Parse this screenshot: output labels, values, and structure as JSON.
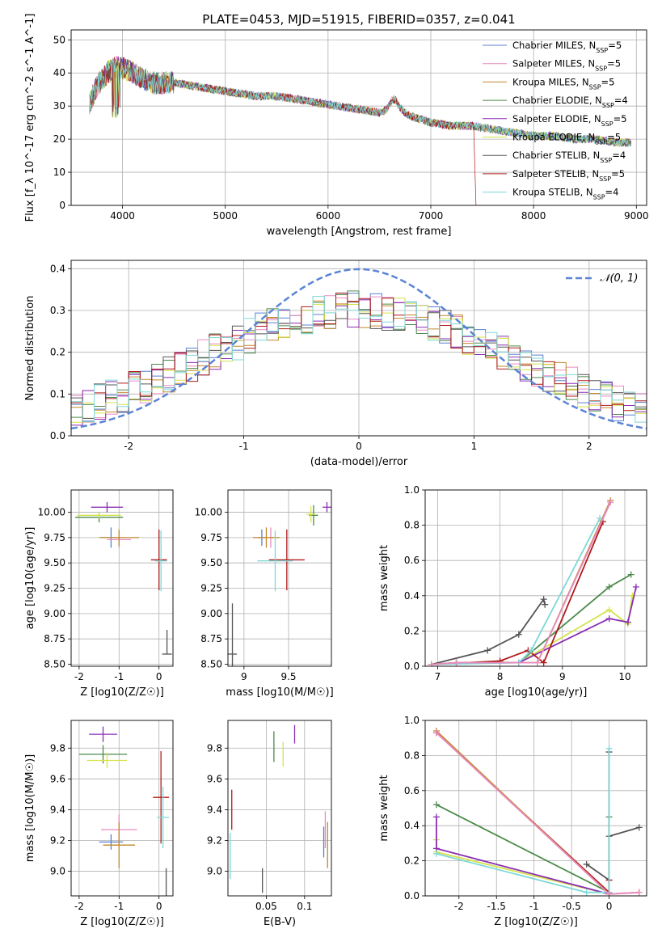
{
  "title": "PLATE=0453, MJD=51915, FIBERID=0357, z=0.041",
  "colors": [
    "#5b7fd1",
    "#e88ac2",
    "#c2882a",
    "#4c8a4c",
    "#8b2fb4",
    "#d4e34a",
    "#555555",
    "#b01a1a",
    "#7fd7d7"
  ],
  "chart_data": [
    {
      "type": "line",
      "panel": "spectrum",
      "xlabel": "wavelength [Angstrom, rest frame]",
      "ylabel": "Flux [f_λ 10^-17 erg cm^-2 s^-1 A^-1]",
      "xlim": [
        3500,
        9100
      ],
      "ylim": [
        0,
        53
      ],
      "xticks": [
        4000,
        5000,
        6000,
        7000,
        8000,
        9000
      ],
      "yticks": [
        0,
        10,
        20,
        30,
        40,
        50
      ],
      "legend": "top-right",
      "series": [
        {
          "name": "Chabrier MILES, N_SSP=5",
          "color": "#5b7fd1"
        },
        {
          "name": "Salpeter MILES, N_SSP=5",
          "color": "#e88ac2"
        },
        {
          "name": "Kroupa MILES, N_SSP=5",
          "color": "#c2882a"
        },
        {
          "name": "Chabrier ELODIE, N_SSP=4",
          "color": "#4c8a4c"
        },
        {
          "name": "Salpeter ELODIE, N_SSP=5",
          "color": "#8b2fb4"
        },
        {
          "name": "Kroupa ELODIE, N_SSP=5",
          "color": "#d4e34a"
        },
        {
          "name": "Chabrier STELIB, N_SSP=4",
          "color": "#555555"
        },
        {
          "name": "Salpeter STELIB, N_SSP=5",
          "color": "#b01a1a"
        },
        {
          "name": "Kroupa STELIB, N_SSP=4",
          "color": "#7fd7d7"
        }
      ],
      "x": [
        3680,
        3750,
        3850,
        3950,
        4050,
        4150,
        4300,
        4500,
        4700,
        4900,
        5100,
        5300,
        5500,
        5700,
        5900,
        6100,
        6300,
        6500,
        6600,
        6700,
        6800,
        7000,
        7200,
        7400,
        7600,
        7800,
        8000,
        8200,
        8400,
        8600,
        8800,
        9000
      ],
      "y": [
        31,
        36,
        40,
        42,
        41,
        39,
        37,
        37,
        36,
        35,
        34,
        33,
        33,
        32,
        31,
        30,
        29,
        28,
        29,
        29,
        27,
        25,
        24,
        24,
        23,
        22,
        21,
        21,
        20,
        20,
        19,
        19
      ]
    },
    {
      "type": "histogram",
      "panel": "residuals",
      "xlabel": "(data-model)/error",
      "ylabel": "Normed distribution",
      "xlim": [
        -2.5,
        2.5
      ],
      "ylim": [
        0,
        0.42
      ],
      "xticks": [
        -2,
        -1,
        0,
        1,
        2
      ],
      "yticks": [
        0.0,
        0.1,
        0.2,
        0.3,
        0.4
      ],
      "legend": "top-right",
      "reference_curve": {
        "name": "N(0,1)",
        "mean": 0,
        "sigma": 1
      },
      "bins": [
        -2.5,
        -2.4,
        -2.3,
        -2.2,
        -2.1,
        -2.0,
        -1.9,
        -1.8,
        -1.7,
        -1.6,
        -1.5,
        -1.4,
        -1.3,
        -1.2,
        -1.1,
        -1.0,
        -0.9,
        -0.8,
        -0.7,
        -0.6,
        -0.5,
        -0.4,
        -0.3,
        -0.2,
        -0.1,
        0.0,
        0.1,
        0.2,
        0.3,
        0.4,
        0.5,
        0.6,
        0.7,
        0.8,
        0.9,
        1.0,
        1.1,
        1.2,
        1.3,
        1.4,
        1.5,
        1.6,
        1.7,
        1.8,
        1.9,
        2.0,
        2.1,
        2.2,
        2.3,
        2.4,
        2.5
      ],
      "envelope": [
        0.07,
        0.075,
        0.08,
        0.09,
        0.1,
        0.11,
        0.12,
        0.135,
        0.15,
        0.16,
        0.17,
        0.185,
        0.2,
        0.21,
        0.225,
        0.24,
        0.25,
        0.26,
        0.27,
        0.28,
        0.285,
        0.29,
        0.3,
        0.3,
        0.305,
        0.3,
        0.3,
        0.295,
        0.29,
        0.285,
        0.28,
        0.27,
        0.26,
        0.25,
        0.24,
        0.23,
        0.22,
        0.2,
        0.185,
        0.17,
        0.16,
        0.15,
        0.135,
        0.12,
        0.11,
        0.1,
        0.09,
        0.08,
        0.075,
        0.07
      ]
    },
    {
      "type": "errorbar",
      "panel": "age-vs-Z",
      "xlabel": "Z [log10(Z/Z☉)]",
      "ylabel": "age  [log10(age/yr)]",
      "xlim": [
        -2.2,
        0.35
      ],
      "ylim": [
        8.48,
        10.22
      ],
      "xticks": [
        -2,
        -1,
        0
      ],
      "yticks": [
        8.5,
        8.75,
        9.0,
        9.25,
        9.5,
        9.75,
        10.0
      ],
      "points": [
        {
          "x": -1.2,
          "xerr": 0.25,
          "y": 9.75,
          "yerr": 0.1,
          "color": "#5b7fd1"
        },
        {
          "x": -1.0,
          "xerr": 0.3,
          "y": 9.73,
          "yerr": 0.08,
          "color": "#e88ac2"
        },
        {
          "x": -1.0,
          "xerr": 0.5,
          "y": 9.75,
          "yerr": 0.08,
          "color": "#c2882a"
        },
        {
          "x": -1.5,
          "xerr": 0.6,
          "y": 9.95,
          "yerr": 0.05,
          "color": "#4c8a4c"
        },
        {
          "x": -1.3,
          "xerr": 0.4,
          "y": 10.05,
          "yerr": 0.05,
          "color": "#8b2fb4"
        },
        {
          "x": -1.5,
          "xerr": 0.55,
          "y": 9.97,
          "yerr": 0.03,
          "color": "#d4e34a"
        },
        {
          "x": 0.2,
          "xerr": 0.0,
          "y": 8.6,
          "yerr": 0.0,
          "color": "#555555"
        },
        {
          "x": 0.0,
          "xerr": 0.2,
          "y": 9.53,
          "yerr": 0.3,
          "color": "#b01a1a"
        },
        {
          "x": 0.05,
          "xerr": 0.15,
          "y": 9.52,
          "yerr": 0.3,
          "color": "#7fd7d7"
        }
      ]
    },
    {
      "type": "errorbar",
      "panel": "age-vs-mass",
      "xlabel": "mass [log10(M/M☉)]",
      "ylabel": "",
      "xlim": [
        8.82,
        9.98
      ],
      "ylim": [
        8.48,
        10.22
      ],
      "xticks": [
        9.0,
        9.5
      ],
      "yticks": [
        8.5,
        8.75,
        9.0,
        9.25,
        9.5,
        9.75,
        10.0
      ],
      "points": [
        {
          "x": 9.2,
          "xerr": 0.05,
          "y": 9.75,
          "yerr": 0.08,
          "color": "#5b7fd1"
        },
        {
          "x": 9.3,
          "xerr": 0.1,
          "y": 9.75,
          "yerr": 0.1,
          "color": "#e88ac2"
        },
        {
          "x": 9.25,
          "xerr": 0.15,
          "y": 9.75,
          "yerr": 0.1,
          "color": "#c2882a"
        },
        {
          "x": 9.78,
          "xerr": 0.05,
          "y": 9.97,
          "yerr": 0.1,
          "color": "#4c8a4c"
        },
        {
          "x": 9.93,
          "xerr": 0.05,
          "y": 10.05,
          "yerr": 0.05,
          "color": "#8b2fb4"
        },
        {
          "x": 9.75,
          "xerr": 0.05,
          "y": 9.98,
          "yerr": 0.08,
          "color": "#d4e34a"
        },
        {
          "x": 8.87,
          "xerr": 0.05,
          "y": 8.6,
          "yerr": 0.5,
          "color": "#555555"
        },
        {
          "x": 9.48,
          "xerr": 0.2,
          "y": 9.53,
          "yerr": 0.3,
          "color": "#b01a1a"
        },
        {
          "x": 9.35,
          "xerr": 0.2,
          "y": 9.52,
          "yerr": 0.3,
          "color": "#7fd7d7"
        }
      ]
    },
    {
      "type": "line",
      "panel": "weight-vs-age",
      "xlabel": "age  [log10(age/yr)]",
      "ylabel": "mass weight",
      "xlim": [
        6.8,
        10.35
      ],
      "ylim": [
        0,
        1.0
      ],
      "xticks": [
        7,
        8,
        9,
        10
      ],
      "yticks": [
        0.0,
        0.2,
        0.4,
        0.6,
        0.8,
        1.0
      ],
      "series": [
        {
          "color": "#555555",
          "x": [
            6.9,
            7.8,
            8.3,
            8.7,
            8.72
          ],
          "y": [
            0.01,
            0.09,
            0.18,
            0.38,
            0.35
          ]
        },
        {
          "color": "#4c8a4c",
          "x": [
            6.9,
            7.3,
            8.3,
            9.75,
            10.1
          ],
          "y": [
            0.01,
            0.02,
            0.02,
            0.45,
            0.52
          ]
        },
        {
          "color": "#d4e34a",
          "x": [
            6.9,
            7.3,
            8.3,
            9.75,
            10.05,
            10.12
          ],
          "y": [
            0.01,
            0.02,
            0.02,
            0.32,
            0.24,
            0.4
          ]
        },
        {
          "color": "#8b2fb4",
          "x": [
            6.9,
            7.3,
            8.3,
            9.75,
            10.05,
            10.18
          ],
          "y": [
            0.01,
            0.02,
            0.02,
            0.27,
            0.25,
            0.45
          ]
        },
        {
          "color": "#b01a1a",
          "x": [
            6.9,
            8.0,
            8.45,
            8.7,
            9.65
          ],
          "y": [
            0.01,
            0.03,
            0.09,
            0.02,
            0.82
          ]
        },
        {
          "color": "#7fd7d7",
          "x": [
            6.9,
            8.3,
            8.5,
            9.6
          ],
          "y": [
            0.01,
            0.02,
            0.09,
            0.84
          ]
        },
        {
          "color": "#c2882a",
          "x": [
            6.9,
            7.3,
            8.6,
            9.77
          ],
          "y": [
            0.01,
            0.02,
            0.02,
            0.94
          ]
        },
        {
          "color": "#e88ac2",
          "x": [
            6.9,
            7.3,
            8.6,
            9.77
          ],
          "y": [
            0.01,
            0.02,
            0.02,
            0.93
          ]
        }
      ]
    },
    {
      "type": "errorbar",
      "panel": "mass-vs-Z",
      "xlabel": "Z [log10(Z/Z☉)]",
      "ylabel": "mass [log10(M/M☉)]",
      "xlim": [
        -2.2,
        0.35
      ],
      "ylim": [
        8.84,
        9.98
      ],
      "xticks": [
        -2,
        -1,
        0
      ],
      "yticks": [
        9.0,
        9.2,
        9.4,
        9.6,
        9.8
      ],
      "points": [
        {
          "x": -1.2,
          "xerr": 0.3,
          "y": 9.19,
          "yerr": 0.05,
          "color": "#5b7fd1"
        },
        {
          "x": -1.0,
          "xerr": 0.45,
          "y": 9.27,
          "yerr": 0.1,
          "color": "#e88ac2"
        },
        {
          "x": -1.0,
          "xerr": 0.4,
          "y": 9.17,
          "yerr": 0.15,
          "color": "#c2882a"
        },
        {
          "x": -1.4,
          "xerr": 0.6,
          "y": 9.76,
          "yerr": 0.06,
          "color": "#4c8a4c"
        },
        {
          "x": -1.4,
          "xerr": 0.35,
          "y": 9.89,
          "yerr": 0.05,
          "color": "#8b2fb4"
        },
        {
          "x": -1.3,
          "xerr": 0.5,
          "y": 9.72,
          "yerr": 0.05,
          "color": "#d4e34a"
        },
        {
          "x": 0.18,
          "xerr": 0.0,
          "y": 8.87,
          "yerr": 0.15,
          "color": "#555555"
        },
        {
          "x": 0.05,
          "xerr": 0.2,
          "y": 9.48,
          "yerr": 0.3,
          "color": "#b01a1a"
        },
        {
          "x": 0.1,
          "xerr": 0.15,
          "y": 9.35,
          "yerr": 0.2,
          "color": "#7fd7d7"
        }
      ]
    },
    {
      "type": "errorbar",
      "panel": "mass-vs-EBV",
      "xlabel": "E(B-V)",
      "ylabel": "",
      "xlim": [
        0.0,
        0.135
      ],
      "ylim": [
        8.84,
        9.98
      ],
      "xticks": [
        0.05,
        0.1
      ],
      "yticks": [
        9.0,
        9.2,
        9.4,
        9.6,
        9.8
      ],
      "points": [
        {
          "x": 0.125,
          "xerr": 0.0,
          "y": 9.19,
          "yerr": 0.1,
          "color": "#5b7fd1"
        },
        {
          "x": 0.127,
          "xerr": 0.0,
          "y": 9.27,
          "yerr": 0.12,
          "color": "#e88ac2"
        },
        {
          "x": 0.13,
          "xerr": 0.0,
          "y": 9.17,
          "yerr": 0.15,
          "color": "#c2882a"
        },
        {
          "x": 0.06,
          "xerr": 0.0,
          "y": 9.81,
          "yerr": 0.1,
          "color": "#4c8a4c"
        },
        {
          "x": 0.087,
          "xerr": 0.0,
          "y": 9.89,
          "yerr": 0.06,
          "color": "#8b2fb4"
        },
        {
          "x": 0.072,
          "xerr": 0.0,
          "y": 9.76,
          "yerr": 0.08,
          "color": "#d4e34a"
        },
        {
          "x": 0.045,
          "xerr": 0.0,
          "y": 8.94,
          "yerr": 0.08,
          "color": "#555555"
        },
        {
          "x": 0.005,
          "xerr": 0.0,
          "y": 9.4,
          "yerr": 0.13,
          "color": "#b01a1a"
        },
        {
          "x": 0.003,
          "xerr": 0.0,
          "y": 9.1,
          "yerr": 0.15,
          "color": "#7fd7d7"
        }
      ]
    },
    {
      "type": "line",
      "panel": "weight-vs-Z",
      "xlabel": "Z [log10(Z/Z☉)]",
      "ylabel": "mass weight",
      "xlim": [
        -2.45,
        0.5
      ],
      "ylim": [
        0,
        1.0
      ],
      "xticks": [
        -2.0,
        -1.5,
        -1.0,
        -0.5,
        0.0
      ],
      "yticks": [
        0.0,
        0.2,
        0.4,
        0.6,
        0.8,
        1.0
      ],
      "series": [
        {
          "color": "#555555",
          "x": [
            -0.3,
            0.0,
            0.0,
            0.0,
            0.4
          ],
          "y": [
            0.18,
            0.09,
            0.82,
            0.34,
            0.39
          ]
        },
        {
          "color": "#4c8a4c",
          "x": [
            -2.3,
            0.0,
            0.0
          ],
          "y": [
            0.52,
            0.02,
            0.45
          ]
        },
        {
          "color": "#d4e34a",
          "x": [
            -2.3,
            -2.3,
            0.0
          ],
          "y": [
            0.32,
            0.25,
            0.01
          ]
        },
        {
          "color": "#8b2fb4",
          "x": [
            -2.3,
            -2.3,
            0.0,
            0.0
          ],
          "y": [
            0.45,
            0.27,
            0.01,
            0.02
          ]
        },
        {
          "color": "#b01a1a",
          "x": [
            -2.3,
            0.0,
            0.0
          ],
          "y": [
            0.93,
            0.02,
            0.09
          ]
        },
        {
          "color": "#7fd7d7",
          "x": [
            -2.3,
            -0.3,
            0.0,
            0.0
          ],
          "y": [
            0.24,
            0.02,
            0.02,
            0.84
          ]
        },
        {
          "color": "#c2882a",
          "x": [
            -2.3,
            0.0,
            0.4
          ],
          "y": [
            0.94,
            0.01,
            0.02
          ]
        },
        {
          "color": "#e88ac2",
          "x": [
            -2.3,
            0.0,
            0.4
          ],
          "y": [
            0.93,
            0.01,
            0.02
          ]
        }
      ]
    }
  ]
}
